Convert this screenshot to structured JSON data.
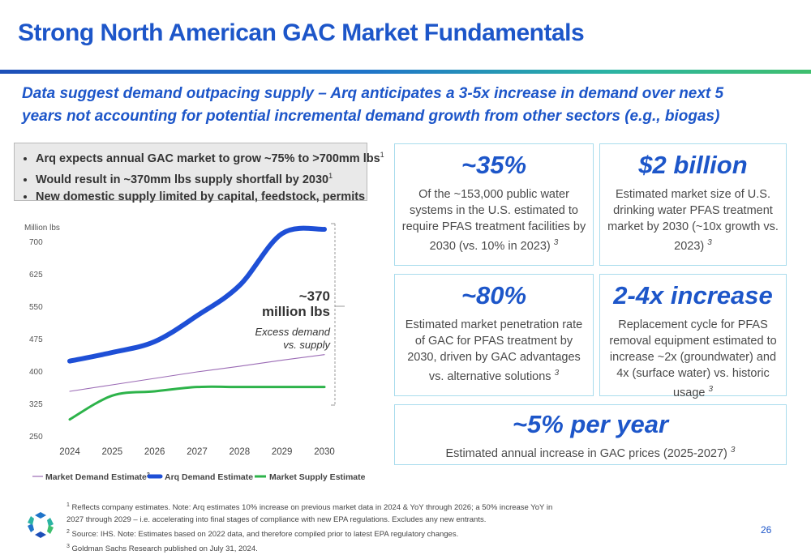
{
  "title": "Strong North American GAC Market Fundamentals",
  "subtitle": "Data suggest demand outpacing supply – Arq anticipates a 3-5x increase in demand over next 5 years not accounting for potential incremental demand growth from other sectors (e.g., biogas)",
  "bullets": [
    {
      "text": "Arq expects annual GAC market to grow ~75% to >700mm lbs",
      "sup": "1"
    },
    {
      "text": "Would result in ~370mm lbs supply shortfall by 2030",
      "sup": "1"
    },
    {
      "text": "New domestic supply limited by capital, feedstock, permits",
      "sup": ""
    }
  ],
  "cards": [
    {
      "big": "~35%",
      "desc": "Of the ~153,000 public water systems in the U.S. estimated to require PFAS treatment facilities by 2030 (vs. 10% in 2023)",
      "sup": "3"
    },
    {
      "big": "$2 billion",
      "desc": "Estimated market size of U.S. drinking water PFAS treatment market by 2030 (~10x growth vs. 2023)",
      "sup": "3"
    },
    {
      "big": "~80%",
      "desc": "Estimated market penetration rate of GAC for PFAS treatment by 2030, driven by GAC advantages vs. alternative solutions",
      "sup": "3"
    },
    {
      "big": "2-4x increase",
      "desc": "Replacement cycle for PFAS removal equipment estimated to increase ~2x (groundwater) and 4x (surface water) vs. historic usage",
      "sup": "3"
    },
    {
      "big": "~5% per year",
      "desc": "Estimated annual increase in GAC prices (2025-2027)",
      "sup": "3"
    }
  ],
  "chart_data": {
    "type": "line",
    "ylabel": "Million lbs",
    "ylim": [
      250,
      700
    ],
    "yticks": [
      250,
      325,
      400,
      475,
      550,
      625,
      700
    ],
    "x": [
      "2024",
      "2025",
      "2026",
      "2027",
      "2028",
      "2029",
      "2030"
    ],
    "series": [
      {
        "name": "Market Demand Estimate",
        "sup": "2",
        "color": "#9b6bb5",
        "values": [
          355,
          370,
          385,
          400,
          413,
          427,
          440
        ]
      },
      {
        "name": "Arq Demand Estimate",
        "sup": "",
        "color": "#1e4fd6",
        "values": [
          425,
          445,
          470,
          530,
          600,
          720,
          735
        ]
      },
      {
        "name": "Market Supply Estimate",
        "sup": "2",
        "color": "#2db34a",
        "values": [
          290,
          345,
          355,
          365,
          365,
          365,
          365
        ]
      }
    ],
    "annotation": {
      "value": "~370",
      "unit": "million lbs",
      "note_line1": "Excess demand",
      "note_line2": "vs. supply"
    }
  },
  "footnotes": [
    {
      "sup": "1",
      "text": "Reflects company estimates. Note: Arq estimates 10% increase on previous market data in 2024 & YoY through 2026; a 50% increase YoY in 2027 through 2029 – i.e. accelerating into final stages of compliance with new EPA regulations. Excludes any new entrants."
    },
    {
      "sup": "2",
      "text": "Source: IHS. Note: Estimates based on 2022 data, and therefore compiled prior to latest EPA regulatory changes."
    },
    {
      "sup": "3",
      "text": "Goldman Sachs Research published on July 31, 2024."
    }
  ],
  "page_number": "26",
  "colors": {
    "brand_blue": "#1d56c9",
    "card_border": "#a9dced",
    "teal": "#2bb3a4",
    "green": "#3fbf6e"
  }
}
